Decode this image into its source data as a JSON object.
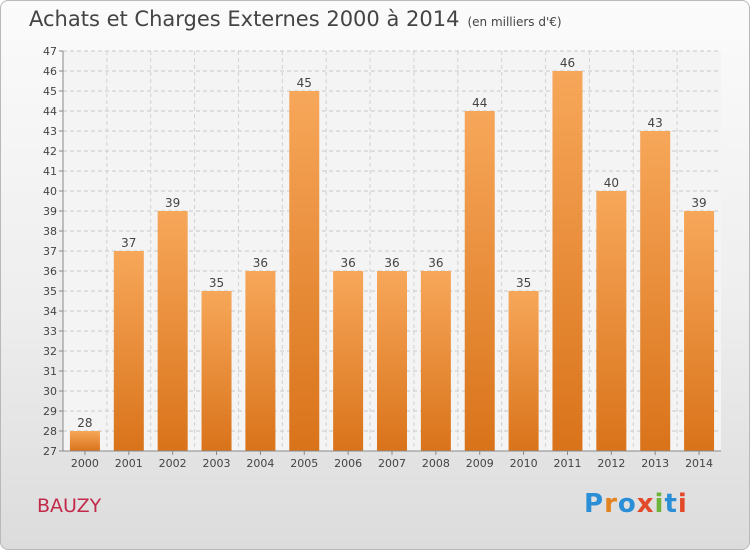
{
  "header": {
    "title": "Achats et Charges Externes 2000 à 2014",
    "subtitle": "(en milliers d'€)"
  },
  "footer": {
    "place": "BAUZY",
    "logo_text": "Proxiti"
  },
  "colors": {
    "bar_top": "#f7a75a",
    "bar_bottom": "#d9731a",
    "place": "#c22a4a",
    "logo_letters": [
      "#2a8fd6",
      "#e2831f",
      "#2a8fd6",
      "#e24a2a",
      "#6fb43a",
      "#2a8fd6",
      "#e24a2a"
    ]
  },
  "chart_data": {
    "type": "bar",
    "categories": [
      "2000",
      "2001",
      "2002",
      "2003",
      "2004",
      "2005",
      "2006",
      "2007",
      "2008",
      "2009",
      "2010",
      "2011",
      "2012",
      "2013",
      "2014"
    ],
    "values": [
      28,
      37,
      39,
      35,
      36,
      45,
      36,
      36,
      36,
      44,
      35,
      46,
      40,
      43,
      39
    ],
    "ylim": [
      27,
      47
    ],
    "yticks": [
      27,
      28,
      29,
      30,
      31,
      32,
      33,
      34,
      35,
      36,
      37,
      38,
      39,
      40,
      41,
      42,
      43,
      44,
      45,
      46,
      47
    ],
    "grid": true,
    "data_labels": true
  }
}
